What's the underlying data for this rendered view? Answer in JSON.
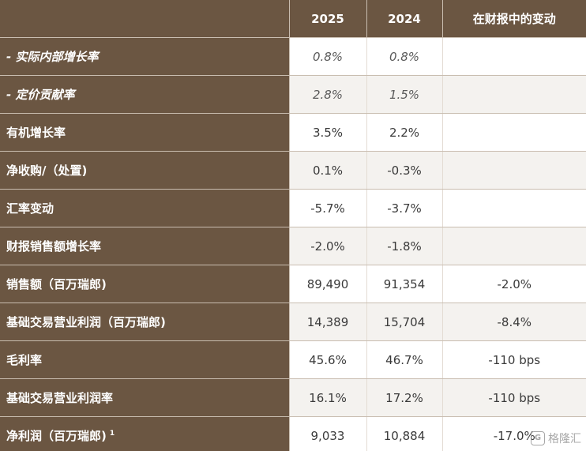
{
  "headers": {
    "label": "",
    "col_2025": "2025",
    "col_2024": "2024",
    "col_change": "在财报中的变动"
  },
  "rows": [
    {
      "label": "- 实际内部增长率",
      "v2025": "0.8%",
      "v2024": "0.8%",
      "change": "",
      "italic": true
    },
    {
      "label": "- 定价贡献率",
      "v2025": "2.8%",
      "v2024": "1.5%",
      "change": "",
      "italic": true
    },
    {
      "label": "有机增长率",
      "v2025": "3.5%",
      "v2024": "2.2%",
      "change": ""
    },
    {
      "label": "净收购/（处置)",
      "v2025": "0.1%",
      "v2024": "-0.3%",
      "change": ""
    },
    {
      "label": "汇率变动",
      "v2025": "-5.7%",
      "v2024": "-3.7%",
      "change": ""
    },
    {
      "label": "财报销售额增长率",
      "v2025": "-2.0%",
      "v2024": "-1.8%",
      "change": ""
    },
    {
      "label": "销售额（百万瑞郎)",
      "v2025": "89,490",
      "v2024": "91,354",
      "change": "-2.0%"
    },
    {
      "label": "基础交易营业利润（百万瑞郎)",
      "v2025": "14,389",
      "v2024": "15,704",
      "change": "-8.4%"
    },
    {
      "label": "毛利率",
      "v2025": "45.6%",
      "v2024": "46.7%",
      "change": "-110 bps"
    },
    {
      "label": "基础交易营业利润率",
      "v2025": "16.1%",
      "v2024": "17.2%",
      "change": "-110 bps"
    },
    {
      "label": "净利润（百万瑞郎)",
      "label_sup": "1",
      "v2025": "9,033",
      "v2024": "10,884",
      "change": "-17.0%"
    }
  ],
  "watermark": {
    "icon": "gelonghui-logo-icon",
    "logo_glyph": "G",
    "text": "格隆汇"
  },
  "colors": {
    "header_bg": "#6b5642",
    "row_alt": "#f4f2ef"
  }
}
